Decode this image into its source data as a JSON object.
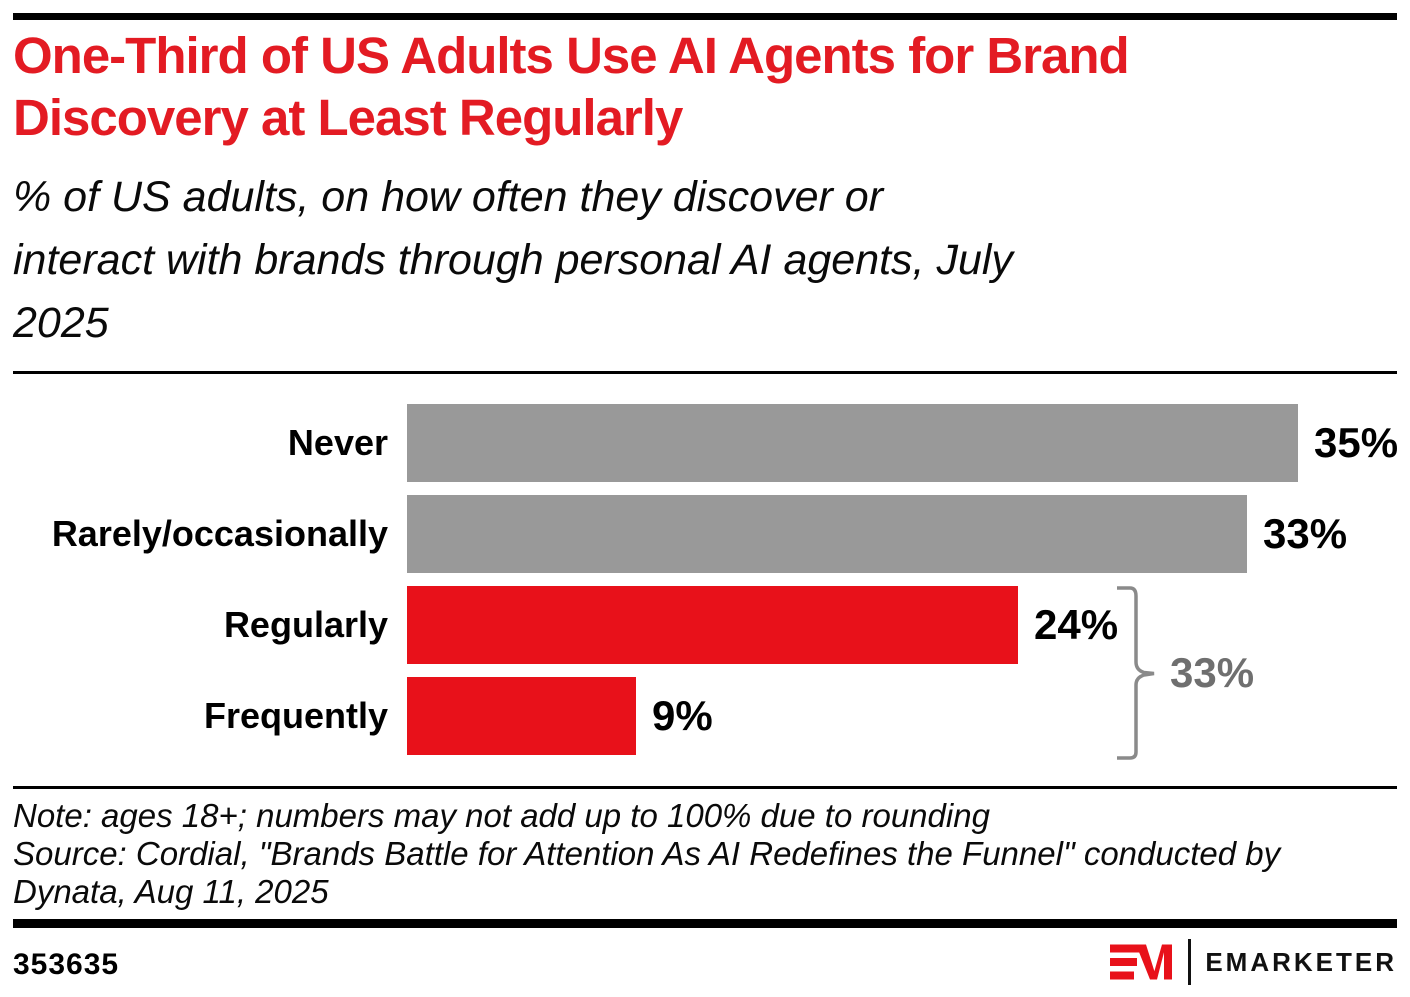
{
  "header": {
    "title_lines": [
      "One-Third of US Adults Use AI Agents for Brand",
      "Discovery at Least Regularly"
    ],
    "title_color": "#e31b23",
    "subtitle_lines": [
      "% of US adults, on how often they discover or",
      "interact with brands through personal AI agents, July",
      "2025"
    ]
  },
  "chart_data": {
    "type": "bar",
    "orientation": "horizontal",
    "categories": [
      "Never",
      "Rarely/occasionally",
      "Regularly",
      "Frequently"
    ],
    "values": [
      35,
      33,
      24,
      9
    ],
    "value_labels": [
      "35%",
      "33%",
      "24%",
      "9%"
    ],
    "bar_colors": [
      "#999999",
      "#999999",
      "#e8111a",
      "#e8111a"
    ],
    "xlim": [
      0,
      35
    ],
    "grid": "off",
    "annotation": {
      "label": "33%",
      "covers": [
        "Regularly",
        "Frequently"
      ],
      "text_color": "#6f6f6f",
      "brace_color": "#8a8a8a"
    }
  },
  "footnote": {
    "note": "Note: ages 18+; numbers may not add up to 100% due to rounding",
    "source_lines": [
      "Source: Cordial, \"Brands Battle for Attention As AI Redefines the Funnel\" conducted by",
      "Dynata, Aug 11, 2025"
    ]
  },
  "footer": {
    "chart_id": "353635",
    "brand": "EMARKETER",
    "brand_mark": "EM-monogram",
    "brand_red": "#e8111a"
  }
}
